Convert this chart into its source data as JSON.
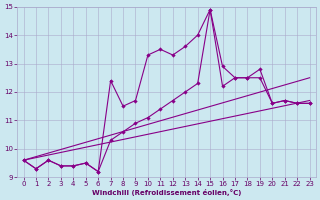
{
  "xlabel": "Windchill (Refroidissement éolien,°C)",
  "bg_color": "#cce8f0",
  "grid_color": "#aaaacc",
  "line_color": "#880088",
  "xlim": [
    -0.5,
    23.5
  ],
  "ylim": [
    9,
    15
  ],
  "xticks": [
    0,
    1,
    2,
    3,
    4,
    5,
    6,
    7,
    8,
    9,
    10,
    11,
    12,
    13,
    14,
    15,
    16,
    17,
    18,
    19,
    20,
    21,
    22,
    23
  ],
  "yticks": [
    9,
    10,
    11,
    12,
    13,
    14,
    15
  ],
  "line1_x": [
    0,
    1,
    2,
    3,
    4,
    5,
    6,
    7,
    8,
    9,
    10,
    11,
    12,
    13,
    14,
    15,
    16,
    17,
    18,
    19,
    20,
    21,
    22,
    23
  ],
  "line1_y": [
    9.6,
    9.3,
    9.6,
    9.4,
    9.4,
    9.5,
    9.2,
    12.4,
    11.5,
    11.7,
    13.3,
    13.5,
    13.3,
    13.6,
    14.0,
    14.9,
    12.9,
    12.5,
    12.5,
    12.8,
    11.6,
    11.7,
    11.6,
    11.6
  ],
  "line2_x": [
    0,
    1,
    2,
    3,
    4,
    5,
    6,
    7,
    8,
    9,
    10,
    11,
    12,
    13,
    14,
    15,
    16,
    17,
    18,
    19,
    20,
    21,
    22,
    23
  ],
  "line2_y": [
    9.6,
    9.3,
    9.6,
    9.4,
    9.4,
    9.5,
    9.2,
    10.3,
    10.6,
    10.9,
    11.1,
    11.4,
    11.7,
    12.0,
    12.3,
    14.9,
    12.2,
    12.5,
    12.5,
    12.5,
    11.6,
    11.7,
    11.6,
    11.6
  ],
  "line3_x": [
    0,
    23
  ],
  "line3_y": [
    9.6,
    12.5
  ],
  "line4_x": [
    0,
    23
  ],
  "line4_y": [
    9.6,
    11.7
  ]
}
